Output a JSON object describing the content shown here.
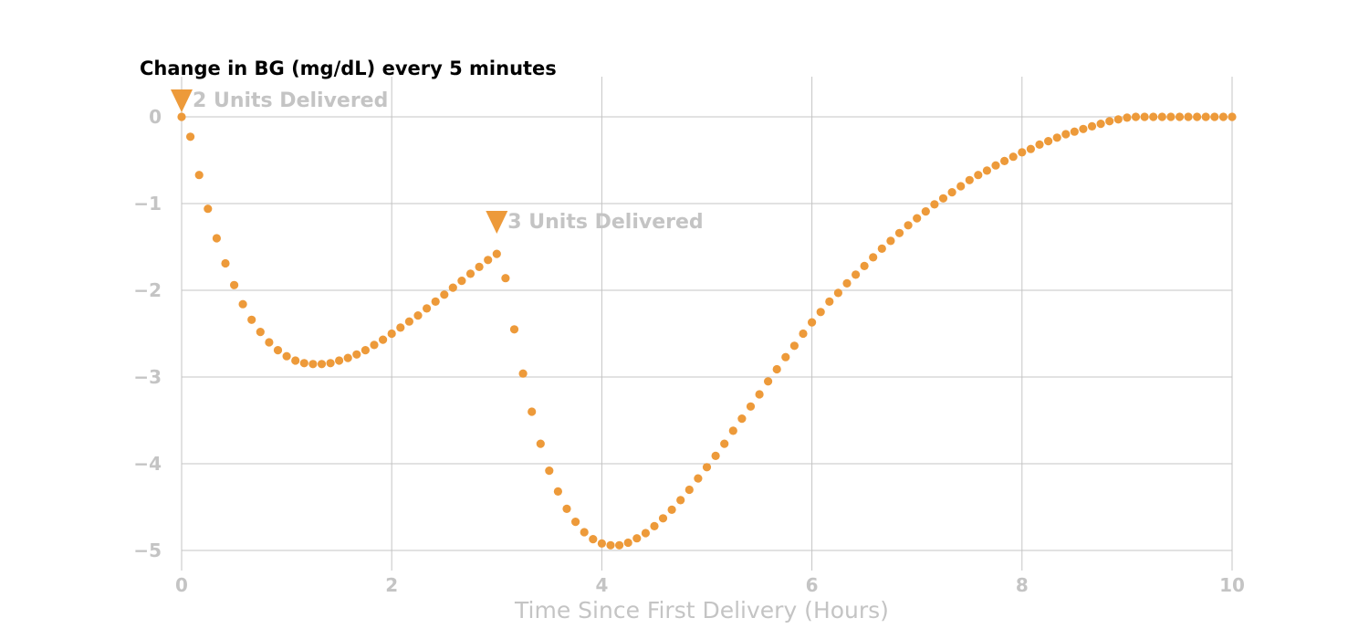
{
  "chart_data": {
    "type": "scatter",
    "title": "Change in BG (mg/dL) every 5 minutes",
    "xlabel": "Time Since First Delivery (Hours)",
    "ylabel": "",
    "xlim": [
      0,
      10
    ],
    "ylim": [
      -5.2,
      0.3
    ],
    "xticks": [
      0,
      2,
      4,
      6,
      8,
      10
    ],
    "xtick_labels": [
      "0",
      "2",
      "4",
      "6",
      "8",
      "10"
    ],
    "yticks": [
      0,
      -1,
      -2,
      -3,
      -4,
      -5
    ],
    "ytick_labels": [
      "0",
      "−1",
      "−2",
      "−3",
      "−4",
      "−5"
    ],
    "grid": true,
    "legend": "none",
    "point_color": "#ed9a3a",
    "grid_color": "#c4c4c4",
    "annotations": [
      {
        "label": "2 Units Delivered",
        "x": 0,
        "y": 0,
        "marker": "triangle-down"
      },
      {
        "label": "3 Units Delivered",
        "x": 3,
        "y": -1.4,
        "marker": "triangle-down"
      }
    ],
    "series": [
      {
        "x": [
          0,
          0.0833,
          0.1667,
          0.25,
          0.3333,
          0.4167,
          0.5,
          0.5833,
          0.6667,
          0.75,
          0.8333,
          0.9167,
          1,
          1.0833,
          1.1667,
          1.25,
          1.3333,
          1.4167,
          1.5,
          1.5833,
          1.6667,
          1.75,
          1.8333,
          1.9167,
          2,
          2.0833,
          2.1667,
          2.25,
          2.3333,
          2.4167,
          2.5,
          2.5833,
          2.6667,
          2.75,
          2.8333,
          2.9167,
          3,
          3.0833,
          3.1667,
          3.25,
          3.3333,
          3.4167,
          3.5,
          3.5833,
          3.6667,
          3.75,
          3.8333,
          3.9167,
          4,
          4.0833,
          4.1667,
          4.25,
          4.3333,
          4.4167,
          4.5,
          4.5833,
          4.6667,
          4.75,
          4.8333,
          4.9167,
          5,
          5.0833,
          5.1667,
          5.25,
          5.3333,
          5.4167,
          5.5,
          5.5833,
          5.6667,
          5.75,
          5.8333,
          5.9167,
          6,
          6.0833,
          6.1667,
          6.25,
          6.3333,
          6.4167,
          6.5,
          6.5833,
          6.6667,
          6.75,
          6.8333,
          6.9167,
          7,
          7.0833,
          7.1667,
          7.25,
          7.3333,
          7.4167,
          7.5,
          7.5833,
          7.6667,
          7.75,
          7.8333,
          7.9167,
          8,
          8.0833,
          8.1667,
          8.25,
          8.3333,
          8.4167,
          8.5,
          8.5833,
          8.6667,
          8.75,
          8.8333,
          8.9167,
          9,
          9.0833,
          9.1667,
          9.25,
          9.3333,
          9.4167,
          9.5,
          9.5833,
          9.6667,
          9.75,
          9.8333,
          9.9167,
          10
        ],
        "y": [
          0,
          -0.23,
          -0.67,
          -1.06,
          -1.4,
          -1.69,
          -1.94,
          -2.16,
          -2.34,
          -2.48,
          -2.6,
          -2.69,
          -2.76,
          -2.81,
          -2.84,
          -2.85,
          -2.85,
          -2.84,
          -2.81,
          -2.78,
          -2.74,
          -2.69,
          -2.63,
          -2.57,
          -2.5,
          -2.43,
          -2.36,
          -2.29,
          -2.21,
          -2.13,
          -2.05,
          -1.97,
          -1.89,
          -1.81,
          -1.73,
          -1.65,
          -1.58,
          -1.86,
          -2.45,
          -2.96,
          -3.4,
          -3.77,
          -4.08,
          -4.32,
          -4.52,
          -4.67,
          -4.79,
          -4.87,
          -4.92,
          -4.94,
          -4.94,
          -4.91,
          -4.86,
          -4.8,
          -4.72,
          -4.63,
          -4.53,
          -4.42,
          -4.3,
          -4.17,
          -4.04,
          -3.91,
          -3.77,
          -3.62,
          -3.48,
          -3.34,
          -3.2,
          -3.05,
          -2.91,
          -2.77,
          -2.64,
          -2.5,
          -2.37,
          -2.25,
          -2.13,
          -2.03,
          -1.92,
          -1.82,
          -1.72,
          -1.62,
          -1.52,
          -1.43,
          -1.34,
          -1.25,
          -1.17,
          -1.09,
          -1.01,
          -0.94,
          -0.87,
          -0.8,
          -0.73,
          -0.67,
          -0.62,
          -0.56,
          -0.51,
          -0.46,
          -0.41,
          -0.37,
          -0.32,
          -0.28,
          -0.24,
          -0.2,
          -0.17,
          -0.14,
          -0.11,
          -0.08,
          -0.05,
          -0.03,
          -0.01,
          0,
          0,
          0,
          0,
          0,
          0,
          0,
          0,
          0,
          0,
          0,
          0
        ]
      }
    ]
  }
}
